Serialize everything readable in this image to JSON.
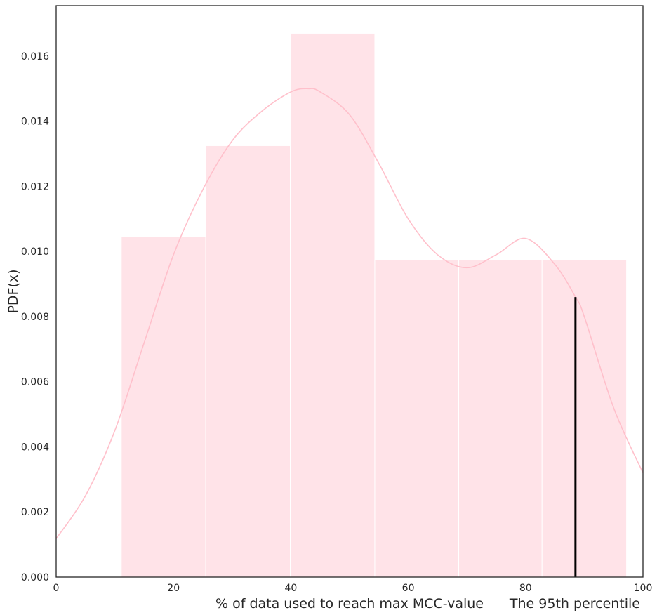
{
  "chart_data": {
    "type": "bar",
    "xlabel": "% of data used to reach max MCC-value",
    "ylabel": "PDF(x)",
    "annotation": "The 95th percentile",
    "xlim": [
      0,
      100
    ],
    "ylim": [
      0,
      0.01755
    ],
    "x_ticks": [
      "0",
      "20",
      "40",
      "60",
      "80",
      "100"
    ],
    "y_ticks": [
      "0.000",
      "0.002",
      "0.004",
      "0.006",
      "0.008",
      "0.010",
      "0.012",
      "0.014",
      "0.016"
    ],
    "grid": false,
    "bars": [
      {
        "x0": 11.1,
        "x1": 25.5,
        "value": 0.01045
      },
      {
        "x0": 25.5,
        "x1": 39.9,
        "value": 0.01325
      },
      {
        "x0": 39.9,
        "x1": 54.3,
        "value": 0.0167
      },
      {
        "x0": 54.3,
        "x1": 68.6,
        "value": 0.00975
      },
      {
        "x0": 68.6,
        "x1": 82.8,
        "value": 0.00975
      },
      {
        "x0": 82.8,
        "x1": 97.2,
        "value": 0.00975
      }
    ],
    "kde": {
      "x": [
        0,
        5,
        10,
        15,
        20,
        25,
        30,
        35,
        40,
        43,
        45,
        50,
        55,
        60,
        65,
        70,
        75,
        80,
        85,
        88.5,
        90,
        95,
        100
      ],
      "y": [
        0.00118,
        0.0025,
        0.0045,
        0.0072,
        0.0099,
        0.0119,
        0.0134,
        0.0143,
        0.0149,
        0.015,
        0.0149,
        0.0142,
        0.0127,
        0.011,
        0.0099,
        0.0095,
        0.0099,
        0.0104,
        0.0096,
        0.0086,
        0.008,
        0.0052,
        0.0032
      ]
    },
    "percentile_95": {
      "x": 88.5,
      "y": 0.0086
    },
    "colors": {
      "bar_fill": "#ffe3e8",
      "bar_edge": "#ffffff",
      "kde_line": "#ffc0cb",
      "percentile_line": "#000000",
      "axis": "#262626"
    }
  }
}
